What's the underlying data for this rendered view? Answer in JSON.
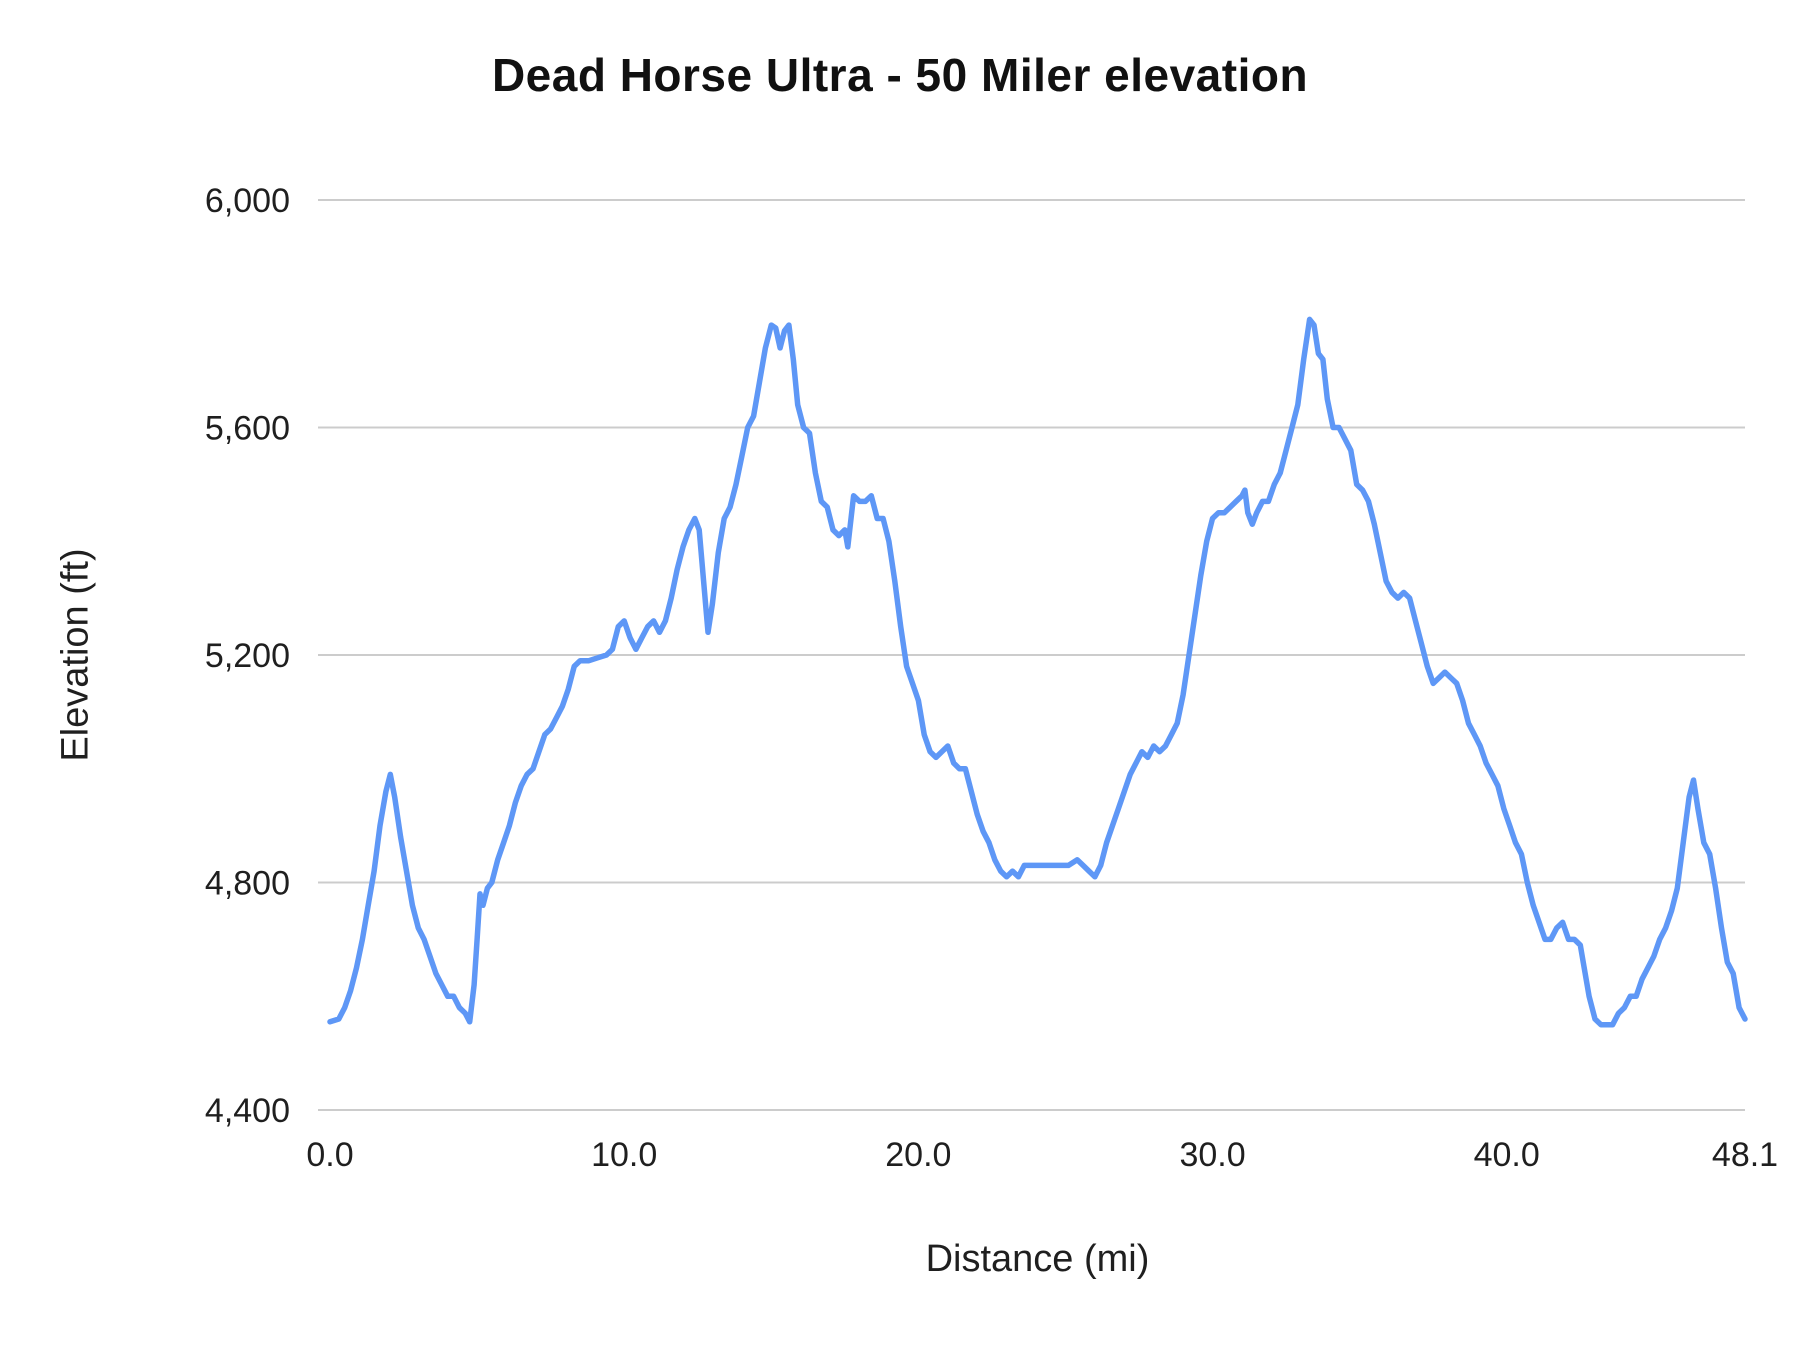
{
  "chart": {
    "title": "Dead Horse Ultra - 50 Miler elevation",
    "xlabel": "Distance (mi)",
    "ylabel": "Elevation (ft)"
  },
  "chart_data": {
    "type": "line",
    "title": "Dead Horse Ultra - 50 Miler elevation",
    "xlabel": "Distance (mi)",
    "ylabel": "Elevation (ft)",
    "xlim": [
      0,
      48.1
    ],
    "ylim": [
      4400,
      6000
    ],
    "x_ticks": [
      0,
      10,
      20,
      30,
      40,
      48.1
    ],
    "x_tick_labels": [
      "0.0",
      "10.0",
      "20.0",
      "30.0",
      "40.0",
      "48.1"
    ],
    "y_ticks": [
      4400,
      4800,
      5200,
      5600,
      6000
    ],
    "y_tick_labels": [
      "4,400",
      "4,800",
      "5,200",
      "5,600",
      "6,000"
    ],
    "grid": true,
    "legend": "none",
    "line_color": "#5e97f6",
    "gridline_color": "#cccccc",
    "series": [
      {
        "name": "Elevation",
        "x": [
          0.0,
          0.3,
          0.5,
          0.7,
          0.9,
          1.1,
          1.3,
          1.5,
          1.7,
          1.9,
          2.05,
          2.2,
          2.4,
          2.6,
          2.8,
          3.0,
          3.2,
          3.4,
          3.6,
          3.8,
          4.0,
          4.2,
          4.4,
          4.6,
          4.75,
          4.9,
          5.0,
          5.1,
          5.2,
          5.35,
          5.5,
          5.7,
          5.9,
          6.1,
          6.3,
          6.5,
          6.7,
          6.9,
          7.1,
          7.3,
          7.5,
          7.7,
          7.9,
          8.1,
          8.3,
          8.5,
          8.8,
          9.1,
          9.4,
          9.6,
          9.8,
          10.0,
          10.2,
          10.4,
          10.6,
          10.8,
          11.0,
          11.2,
          11.4,
          11.6,
          11.8,
          12.0,
          12.2,
          12.4,
          12.55,
          12.7,
          12.85,
          13.0,
          13.2,
          13.4,
          13.6,
          13.8,
          14.0,
          14.2,
          14.4,
          14.6,
          14.8,
          15.0,
          15.15,
          15.3,
          15.45,
          15.6,
          15.75,
          15.9,
          16.1,
          16.3,
          16.5,
          16.7,
          16.9,
          17.1,
          17.3,
          17.5,
          17.6,
          17.8,
          18.0,
          18.2,
          18.4,
          18.6,
          18.8,
          19.0,
          19.2,
          19.4,
          19.6,
          19.8,
          20.0,
          20.2,
          20.4,
          20.6,
          20.8,
          21.0,
          21.2,
          21.4,
          21.6,
          21.8,
          22.0,
          22.2,
          22.4,
          22.6,
          22.8,
          23.0,
          23.2,
          23.4,
          23.6,
          23.9,
          24.2,
          24.5,
          24.8,
          25.1,
          25.4,
          25.6,
          25.8,
          26.0,
          26.2,
          26.4,
          26.6,
          26.8,
          27.0,
          27.2,
          27.4,
          27.6,
          27.8,
          28.0,
          28.2,
          28.4,
          28.6,
          28.8,
          29.0,
          29.2,
          29.4,
          29.6,
          29.8,
          30.0,
          30.2,
          30.4,
          30.6,
          30.8,
          31.0,
          31.1,
          31.2,
          31.35,
          31.5,
          31.7,
          31.9,
          32.1,
          32.3,
          32.5,
          32.7,
          32.9,
          33.1,
          33.3,
          33.45,
          33.6,
          33.75,
          33.9,
          34.1,
          34.3,
          34.5,
          34.7,
          34.9,
          35.1,
          35.3,
          35.5,
          35.7,
          35.9,
          36.1,
          36.3,
          36.5,
          36.7,
          36.9,
          37.1,
          37.3,
          37.5,
          37.7,
          37.9,
          38.1,
          38.3,
          38.5,
          38.7,
          38.9,
          39.1,
          39.3,
          39.5,
          39.7,
          39.9,
          40.1,
          40.3,
          40.5,
          40.7,
          40.9,
          41.1,
          41.3,
          41.5,
          41.7,
          41.9,
          42.1,
          42.3,
          42.5,
          42.6,
          42.8,
          43.0,
          43.2,
          43.4,
          43.6,
          43.8,
          44.0,
          44.2,
          44.4,
          44.6,
          44.8,
          45.0,
          45.2,
          45.4,
          45.6,
          45.8,
          46.0,
          46.2,
          46.35,
          46.5,
          46.7,
          46.9,
          47.1,
          47.3,
          47.5,
          47.7,
          47.9,
          48.1
        ],
        "y": [
          4555,
          4560,
          4580,
          4610,
          4650,
          4700,
          4760,
          4820,
          4900,
          4960,
          4990,
          4950,
          4880,
          4820,
          4760,
          4720,
          4700,
          4670,
          4640,
          4620,
          4600,
          4600,
          4580,
          4570,
          4555,
          4620,
          4700,
          4780,
          4760,
          4790,
          4800,
          4840,
          4870,
          4900,
          4940,
          4970,
          4990,
          5000,
          5030,
          5060,
          5070,
          5090,
          5110,
          5140,
          5180,
          5190,
          5190,
          5195,
          5200,
          5210,
          5250,
          5260,
          5230,
          5210,
          5230,
          5250,
          5260,
          5240,
          5260,
          5300,
          5350,
          5390,
          5420,
          5440,
          5420,
          5330,
          5240,
          5290,
          5380,
          5440,
          5460,
          5500,
          5550,
          5600,
          5620,
          5680,
          5740,
          5780,
          5775,
          5740,
          5770,
          5780,
          5720,
          5640,
          5600,
          5590,
          5520,
          5470,
          5460,
          5420,
          5410,
          5420,
          5390,
          5480,
          5470,
          5470,
          5480,
          5440,
          5440,
          5400,
          5330,
          5250,
          5180,
          5150,
          5120,
          5060,
          5030,
          5020,
          5030,
          5040,
          5010,
          5000,
          5000,
          4960,
          4920,
          4890,
          4870,
          4840,
          4820,
          4810,
          4820,
          4810,
          4830,
          4830,
          4830,
          4830,
          4830,
          4830,
          4840,
          4830,
          4820,
          4810,
          4830,
          4870,
          4900,
          4930,
          4960,
          4990,
          5010,
          5030,
          5020,
          5040,
          5030,
          5040,
          5060,
          5080,
          5130,
          5200,
          5270,
          5340,
          5400,
          5440,
          5450,
          5450,
          5460,
          5470,
          5480,
          5490,
          5450,
          5430,
          5450,
          5470,
          5470,
          5500,
          5520,
          5560,
          5600,
          5640,
          5720,
          5790,
          5780,
          5730,
          5720,
          5650,
          5600,
          5600,
          5580,
          5560,
          5500,
          5490,
          5470,
          5430,
          5380,
          5330,
          5310,
          5300,
          5310,
          5300,
          5260,
          5220,
          5180,
          5150,
          5160,
          5170,
          5160,
          5150,
          5120,
          5080,
          5060,
          5040,
          5010,
          4990,
          4970,
          4930,
          4900,
          4870,
          4850,
          4800,
          4760,
          4730,
          4700,
          4700,
          4720,
          4730,
          4700,
          4700,
          4690,
          4660,
          4600,
          4560,
          4550,
          4550,
          4550,
          4570,
          4580,
          4600,
          4600,
          4630,
          4650,
          4670,
          4700,
          4720,
          4750,
          4790,
          4870,
          4950,
          4980,
          4930,
          4870,
          4850,
          4790,
          4720,
          4660,
          4640,
          4580,
          4560
        ]
      }
    ]
  }
}
